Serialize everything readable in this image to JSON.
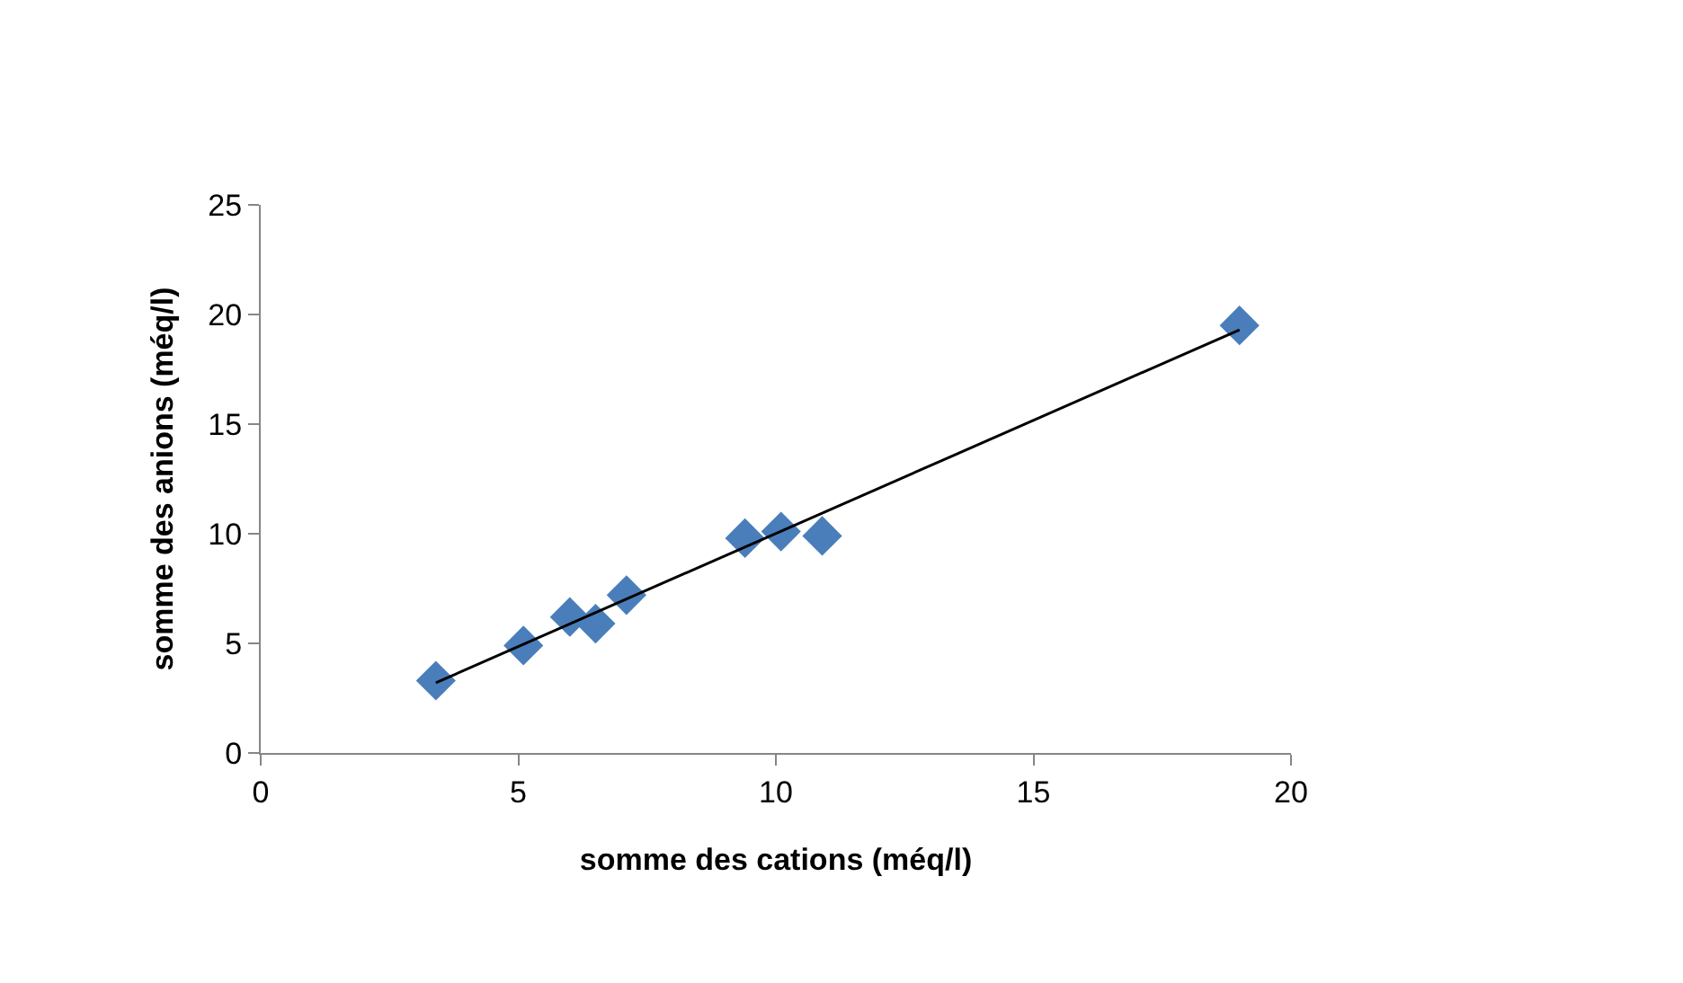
{
  "chart_data": {
    "type": "scatter",
    "xlabel": "somme des cations (méq/l)",
    "ylabel": "somme des anions (méq/l)",
    "xlim": [
      0,
      20
    ],
    "xticks": [
      0,
      5,
      10,
      15,
      20
    ],
    "ylim": [
      0,
      25
    ],
    "yticks": [
      0,
      5,
      10,
      15,
      20,
      25
    ],
    "marker": "diamond",
    "series": [
      {
        "color": "#4a7ebb",
        "x": [
          3.4,
          5.1,
          6.0,
          6.5,
          7.1,
          9.4,
          10.1,
          10.9,
          19.0
        ],
        "values": [
          3.3,
          4.9,
          6.2,
          5.9,
          7.2,
          9.8,
          10.1,
          9.9,
          19.5
        ]
      },
      {
        "type": "line",
        "color": "#000000",
        "marker": "none",
        "x": [
          3.4,
          19.0
        ],
        "values": [
          3.2,
          19.3
        ]
      }
    ]
  }
}
